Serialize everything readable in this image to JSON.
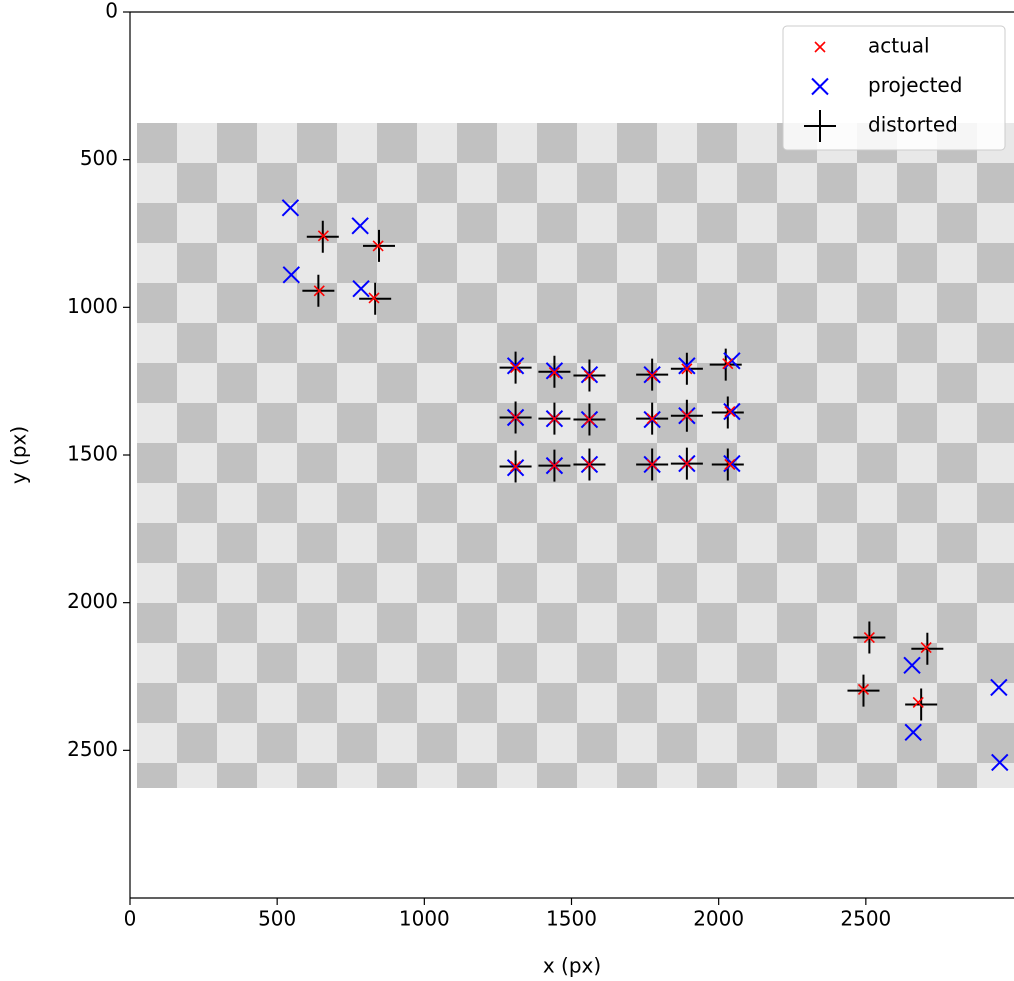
{
  "chart_data": {
    "type": "scatter",
    "x_label": "x (px)",
    "y_label": "y (px)",
    "xlim": [
      0,
      3000
    ],
    "ylim": [
      3000,
      0
    ],
    "xticks": [
      0,
      500,
      1000,
      1500,
      2000,
      2500
    ],
    "yticks": [
      0,
      500,
      1000,
      1500,
      2000,
      2500
    ],
    "legend": "upper right",
    "series": [
      {
        "name": "actual",
        "color": "#ff0000",
        "marker": "x-small",
        "x": [
          657,
          843,
          643,
          829,
          1310,
          1442,
          1561,
          1774,
          1892,
          2031,
          1310,
          1442,
          1561,
          1774,
          1892,
          2038,
          1310,
          1442,
          1561,
          1774,
          1892,
          2038,
          2512,
          2705,
          2492,
          2678
        ],
        "values": [
          758,
          792,
          944,
          968,
          1204,
          1221,
          1231,
          1231,
          1208,
          1191,
          1373,
          1377,
          1380,
          1377,
          1367,
          1353,
          1539,
          1536,
          1532,
          1532,
          1529,
          1532,
          2118,
          2152,
          2294,
          2338
        ]
      },
      {
        "name": "projected",
        "color": "#0000ff",
        "marker": "x",
        "x": [
          545,
          782,
          548,
          785,
          1310,
          1442,
          1561,
          1774,
          1892,
          2045,
          1310,
          1442,
          1561,
          1774,
          1892,
          2045,
          1310,
          1442,
          1561,
          1774,
          1892,
          2045,
          2657,
          2661,
          2952,
          2955
        ],
        "values": [
          663,
          724,
          890,
          937,
          1198,
          1215,
          1228,
          1228,
          1198,
          1181,
          1373,
          1377,
          1380,
          1380,
          1367,
          1353,
          1543,
          1536,
          1532,
          1532,
          1529,
          1529,
          2212,
          2439,
          2287,
          2541
        ]
      },
      {
        "name": "distorted",
        "color": "#000000",
        "marker": "plus",
        "x": [
          655,
          846,
          640,
          833,
          1310,
          1442,
          1561,
          1774,
          1892,
          2024,
          1310,
          1442,
          1561,
          1774,
          1892,
          2031,
          1310,
          1442,
          1561,
          1774,
          1892,
          2031,
          2512,
          2709,
          2492,
          2688
        ],
        "values": [
          761,
          792,
          944,
          971,
          1204,
          1218,
          1231,
          1228,
          1208,
          1194,
          1373,
          1377,
          1380,
          1377,
          1367,
          1356,
          1539,
          1536,
          1532,
          1532,
          1529,
          1532,
          2118,
          2156,
          2298,
          2345
        ]
      }
    ]
  }
}
